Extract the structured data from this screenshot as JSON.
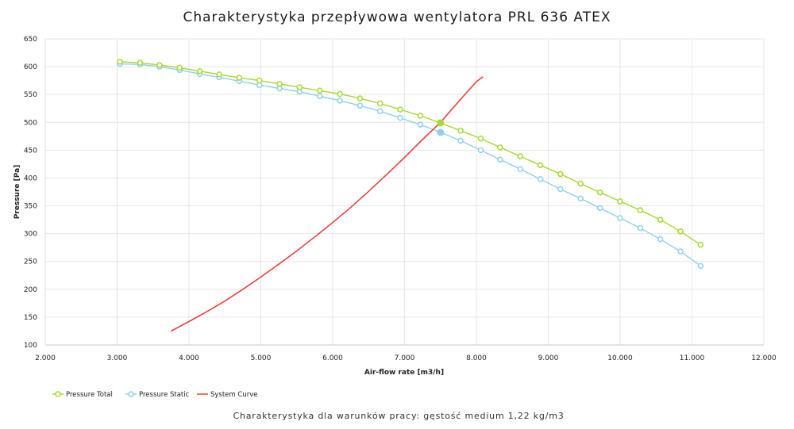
{
  "chart_data": {
    "type": "line",
    "title": "Charakterystyka przepływowa wentylatora PRL 636 ATEX",
    "subtitle": "Charakterystyka dla warunków pracy: gęstość medium 1,22 kg/m3",
    "xlabel": "Air-flow rate [m3/h]",
    "ylabel": "Pressure [Pa]",
    "xlim": [
      2000,
      12000
    ],
    "ylim": [
      100,
      650
    ],
    "x_ticks": [
      2000,
      3000,
      4000,
      5000,
      6000,
      7000,
      8000,
      9000,
      10000,
      11000,
      12000
    ],
    "x_tick_labels": [
      "2.000",
      "3.000",
      "4.000",
      "5.000",
      "6.000",
      "7.000",
      "8.000",
      "9.000",
      "10.000",
      "11.000",
      "12.000"
    ],
    "y_ticks": [
      100,
      150,
      200,
      250,
      300,
      350,
      400,
      450,
      500,
      550,
      600,
      650
    ],
    "y_tick_labels": [
      "100",
      "150",
      "200",
      "250",
      "300",
      "350",
      "400",
      "450",
      "500",
      "550",
      "600",
      "650"
    ],
    "grid": true,
    "legend_position": "bottom-left",
    "series": [
      {
        "name": "Pressure Total",
        "color": "#a6d930",
        "marker": "circle",
        "x": [
          3040,
          3320,
          3590,
          3870,
          4150,
          4420,
          4700,
          4980,
          5260,
          5540,
          5820,
          6100,
          6380,
          6660,
          6940,
          7220,
          7500,
          7780,
          8060,
          8330,
          8610,
          8890,
          9170,
          9450,
          9720,
          10000,
          10280,
          10560,
          10840,
          11120
        ],
        "y": [
          609,
          607,
          603,
          598,
          592,
          586,
          580,
          575,
          569,
          563,
          557,
          551,
          543,
          534,
          523,
          512,
          499,
          485,
          471,
          455,
          439,
          423,
          407,
          390,
          374,
          358,
          342,
          325,
          304,
          280
        ]
      },
      {
        "name": "Pressure Static",
        "color": "#8fd0f0",
        "marker": "circle",
        "x": [
          3040,
          3320,
          3590,
          3870,
          4150,
          4420,
          4700,
          4980,
          5260,
          5540,
          5820,
          6100,
          6380,
          6660,
          6940,
          7220,
          7500,
          7780,
          8060,
          8330,
          8610,
          8890,
          9170,
          9450,
          9720,
          10000,
          10280,
          10560,
          10840,
          11120
        ],
        "y": [
          605,
          604,
          600,
          594,
          587,
          581,
          574,
          567,
          561,
          555,
          547,
          539,
          530,
          520,
          508,
          496,
          482,
          467,
          450,
          433,
          416,
          398,
          380,
          363,
          346,
          328,
          310,
          290,
          268,
          242
        ]
      },
      {
        "name": "System Curve",
        "color": "#ee4040",
        "marker": "none",
        "x": [
          3750,
          4000,
          4250,
          4500,
          4750,
          5000,
          5250,
          5500,
          5750,
          6000,
          6250,
          6500,
          6750,
          7000,
          7250,
          7500,
          7750,
          8000,
          8090
        ],
        "y": [
          125,
          142,
          160,
          179,
          200,
          222,
          245,
          269,
          294,
          320,
          347,
          376,
          406,
          437,
          469,
          500,
          537,
          573,
          582
        ]
      }
    ],
    "operating_points": [
      {
        "series": "Pressure Total",
        "x": 7500,
        "y": 499
      },
      {
        "series": "Pressure Static",
        "x": 7500,
        "y": 482
      }
    ]
  }
}
